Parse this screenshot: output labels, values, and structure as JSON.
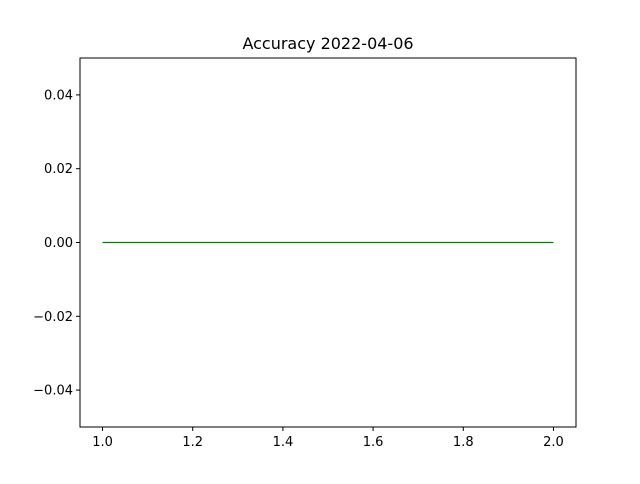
{
  "chart_data": {
    "type": "line",
    "title": "Accuracy  2022-04-06",
    "xlabel": "",
    "ylabel": "",
    "xlim": [
      0.95,
      2.05
    ],
    "ylim": [
      -0.05,
      0.05
    ],
    "x_ticks": [
      1.0,
      1.2,
      1.4,
      1.6,
      1.8,
      2.0
    ],
    "x_tick_labels": [
      "1.0",
      "1.2",
      "1.4",
      "1.6",
      "1.8",
      "2.0"
    ],
    "y_ticks": [
      -0.04,
      -0.02,
      0.0,
      0.02,
      0.04
    ],
    "y_tick_labels": [
      "−0.04",
      "−0.02",
      "0.00",
      "0.02",
      "0.04"
    ],
    "grid": false,
    "series": [
      {
        "x": [
          1.0,
          2.0
        ],
        "y": [
          0.0,
          0.0
        ],
        "color": "#008000"
      }
    ]
  }
}
